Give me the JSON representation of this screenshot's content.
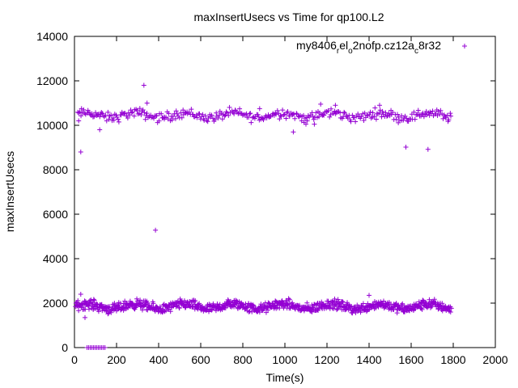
{
  "chart_data": {
    "type": "scatter",
    "title": "maxInsertUsecs vs Time for qp100.L2",
    "xlabel": "Time(s)",
    "ylabel": "maxInsertUsecs",
    "xlim": [
      0,
      2000
    ],
    "ylim": [
      0,
      14000
    ],
    "xticks": [
      0,
      200,
      400,
      600,
      800,
      1000,
      1200,
      1400,
      1600,
      1800,
      2000
    ],
    "yticks": [
      0,
      2000,
      4000,
      6000,
      8000,
      10000,
      12000,
      14000
    ],
    "grid": false,
    "legend_position": "top-right",
    "marker": "+",
    "color": "#9400d3",
    "series": [
      {
        "name_parts": [
          "my8406",
          "r",
          "el",
          "o",
          "2nofp.cz12a",
          "c",
          "8r32"
        ],
        "bands": [
          {
            "x_range": [
              15,
              1790
            ],
            "y_center": 10450,
            "y_spread": 320,
            "count": 360
          },
          {
            "x_range": [
              5,
              1790
            ],
            "y_center": 1850,
            "y_spread": 320,
            "count": 900
          }
        ],
        "zero_points": {
          "x_range": [
            60,
            145
          ],
          "count": 12,
          "y": 0
        },
        "outliers": [
          [
            30,
            8800
          ],
          [
            330,
            11800
          ],
          [
            385,
            5280
          ],
          [
            1575,
            9020
          ],
          [
            1680,
            8920
          ],
          [
            20,
            10200
          ],
          [
            120,
            9800
          ],
          [
            1100,
            10050
          ],
          [
            1140,
            10050
          ],
          [
            1040,
            9700
          ],
          [
            880,
            10750
          ],
          [
            1170,
            10950
          ],
          [
            1240,
            10900
          ],
          [
            345,
            11000
          ],
          [
            50,
            1350
          ],
          [
            1450,
            10900
          ],
          [
            30,
            2400
          ],
          [
            1400,
            2350
          ]
        ]
      }
    ]
  }
}
